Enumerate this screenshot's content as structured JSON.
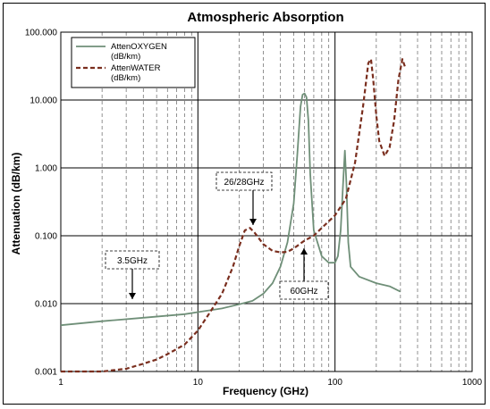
{
  "chart_data": {
    "type": "line",
    "title": "Atmospheric Absorption",
    "xlabel": "Frequency (GHz)",
    "ylabel": "Attenuation (dB/km)",
    "xscale": "log",
    "yscale": "log",
    "xlim": [
      1,
      1000
    ],
    "ylim": [
      0.001,
      100
    ],
    "x_ticks": [
      "1",
      "10",
      "100",
      "1000"
    ],
    "y_ticks": [
      "0.001",
      "0.010",
      "0.100",
      "1.000",
      "10.000",
      "100.000"
    ],
    "grid": true,
    "legend_position": "top-left",
    "series": [
      {
        "name": "AttenOXYGEN",
        "name_line2": "(dB/km)",
        "color": "#6f8f78",
        "style": "solid",
        "points": [
          [
            1,
            0.0048
          ],
          [
            2,
            0.0055
          ],
          [
            4,
            0.0062
          ],
          [
            8,
            0.007
          ],
          [
            10,
            0.0075
          ],
          [
            15,
            0.0085
          ],
          [
            20,
            0.0098
          ],
          [
            25,
            0.011
          ],
          [
            30,
            0.014
          ],
          [
            35,
            0.02
          ],
          [
            40,
            0.035
          ],
          [
            45,
            0.08
          ],
          [
            50,
            0.3
          ],
          [
            53,
            1.5
          ],
          [
            56,
            8
          ],
          [
            58,
            12
          ],
          [
            60,
            12.5
          ],
          [
            62,
            11
          ],
          [
            64,
            5
          ],
          [
            66,
            0.8
          ],
          [
            70,
            0.12
          ],
          [
            80,
            0.05
          ],
          [
            90,
            0.04
          ],
          [
            100,
            0.04
          ],
          [
            105,
            0.05
          ],
          [
            110,
            0.12
          ],
          [
            115,
            0.7
          ],
          [
            118,
            1.8
          ],
          [
            121,
            0.6
          ],
          [
            125,
            0.08
          ],
          [
            130,
            0.035
          ],
          [
            150,
            0.025
          ],
          [
            200,
            0.02
          ],
          [
            250,
            0.018
          ],
          [
            300,
            0.015
          ]
        ]
      },
      {
        "name": "AttenWATER",
        "name_line2": "(dB/km)",
        "color": "#7a2e1e",
        "style": "dashed",
        "points": [
          [
            1,
            0.001
          ],
          [
            2,
            0.001
          ],
          [
            3,
            0.0011
          ],
          [
            4,
            0.0013
          ],
          [
            5,
            0.0015
          ],
          [
            6,
            0.0018
          ],
          [
            8,
            0.0025
          ],
          [
            10,
            0.004
          ],
          [
            12,
            0.007
          ],
          [
            15,
            0.014
          ],
          [
            18,
            0.035
          ],
          [
            20,
            0.07
          ],
          [
            22,
            0.12
          ],
          [
            24,
            0.13
          ],
          [
            26,
            0.11
          ],
          [
            30,
            0.075
          ],
          [
            35,
            0.06
          ],
          [
            40,
            0.057
          ],
          [
            45,
            0.058
          ],
          [
            50,
            0.065
          ],
          [
            60,
            0.085
          ],
          [
            70,
            0.1
          ],
          [
            80,
            0.13
          ],
          [
            100,
            0.2
          ],
          [
            120,
            0.35
          ],
          [
            140,
            1.2
          ],
          [
            160,
            8
          ],
          [
            175,
            35
          ],
          [
            183,
            40
          ],
          [
            190,
            20
          ],
          [
            200,
            6
          ],
          [
            210,
            2.5
          ],
          [
            230,
            1.5
          ],
          [
            250,
            2
          ],
          [
            270,
            5
          ],
          [
            290,
            20
          ],
          [
            310,
            40
          ],
          [
            325,
            30
          ]
        ]
      }
    ],
    "annotations": [
      {
        "text": "3.5GHz",
        "x": 3.5,
        "y": 0.011
      },
      {
        "text": "26/28GHz",
        "x": 27,
        "y": 0.14
      },
      {
        "text": "60GHz",
        "x": 60,
        "y": 0.045
      }
    ]
  }
}
